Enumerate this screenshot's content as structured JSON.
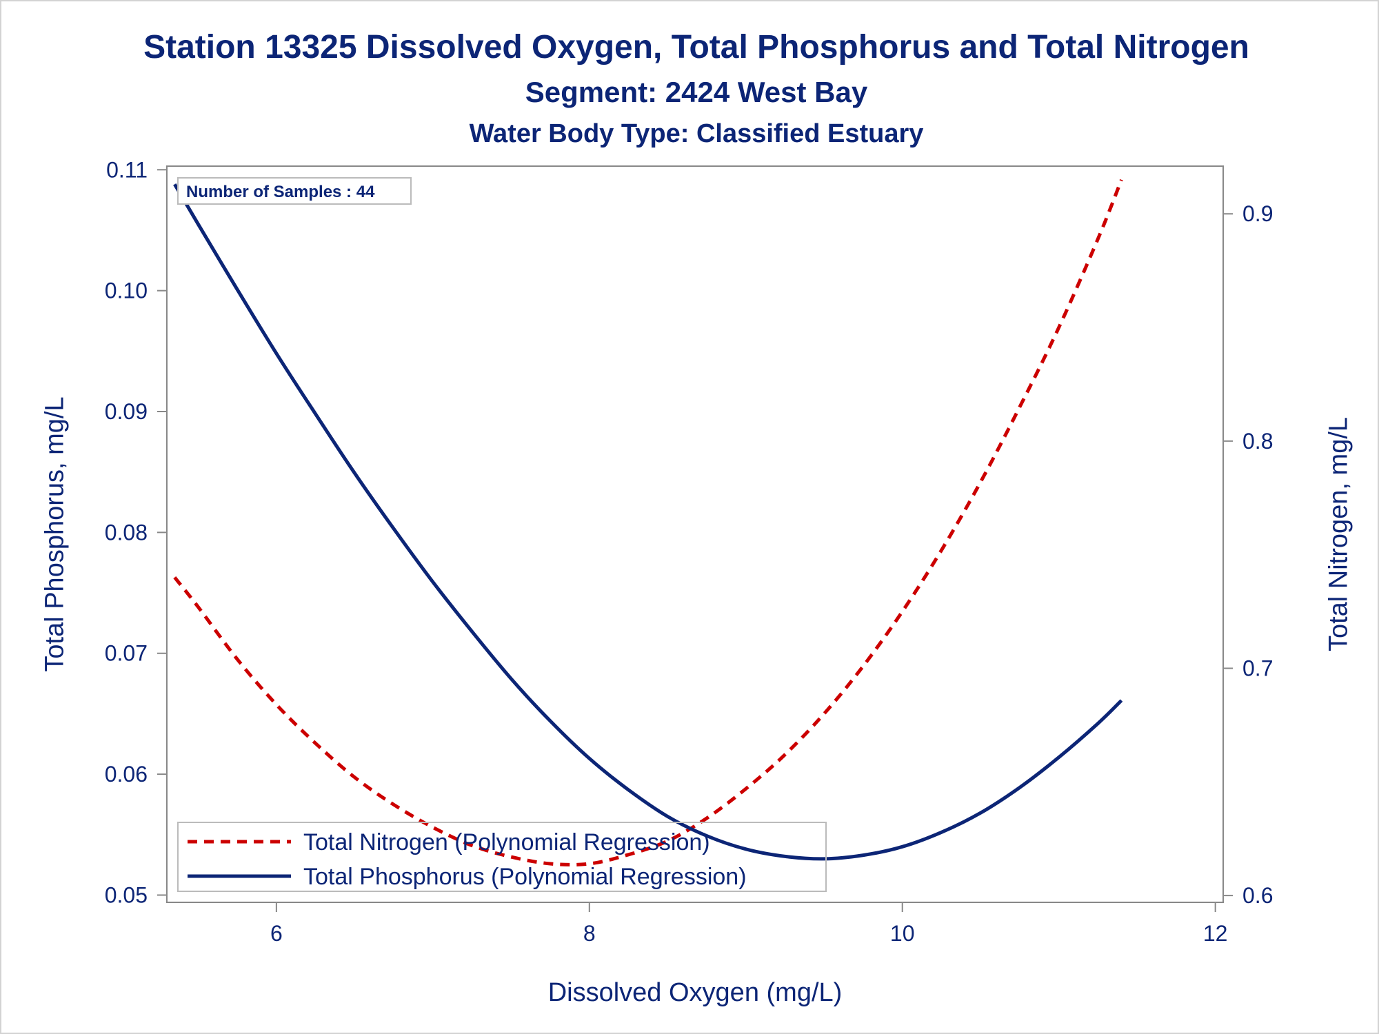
{
  "chart_data": {
    "type": "line",
    "title": "Station 13325  Dissolved Oxygen, Total Phosphorus and Total Nitrogen",
    "subtitle": "Segment: 2424  West Bay",
    "subtitle2": "Water Body Type: Classified Estuary",
    "xlabel": "Dissolved Oxygen (mg/L)",
    "ylabel": "Total Phosphorus, mg/L",
    "y2label": "Total Nitrogen, mg/L",
    "xlim": [
      5.3,
      12.05
    ],
    "ylim": [
      0.0494,
      0.1103
    ],
    "y2lim": [
      0.597,
      0.921
    ],
    "x_ticks": [
      6,
      8,
      10,
      12
    ],
    "x_tick_labels": [
      "6",
      "8",
      "10",
      "12"
    ],
    "y_ticks": [
      0.05,
      0.06,
      0.07,
      0.08,
      0.09,
      0.1,
      0.11
    ],
    "y_tick_labels": [
      "0.05",
      "0.06",
      "0.07",
      "0.08",
      "0.09",
      "0.10",
      "0.11"
    ],
    "y2_ticks": [
      0.6,
      0.7,
      0.8,
      0.9
    ],
    "y2_tick_labels": [
      "0.6",
      "0.7",
      "0.8",
      "0.9"
    ],
    "grid": false,
    "annotation": "Number of Samples : 44",
    "legend_position": "bottom-left",
    "series": [
      {
        "name": "Total Nitrogen (Polynomial Regression)",
        "axis": "right",
        "style": "dashed",
        "color": "#cc0000",
        "x": [
          5.35,
          5.5,
          5.75,
          6.0,
          6.25,
          6.5,
          6.75,
          7.0,
          7.25,
          7.5,
          7.75,
          8.0,
          8.25,
          8.5,
          8.75,
          9.0,
          9.25,
          9.5,
          9.75,
          10.0,
          10.25,
          10.5,
          10.75,
          11.0,
          11.25,
          11.4
        ],
        "y": [
          0.74,
          0.727,
          0.704,
          0.684,
          0.667,
          0.652,
          0.64,
          0.63,
          0.622,
          0.617,
          0.614,
          0.614,
          0.618,
          0.624,
          0.634,
          0.647,
          0.662,
          0.68,
          0.701,
          0.725,
          0.752,
          0.782,
          0.815,
          0.85,
          0.889,
          0.915
        ]
      },
      {
        "name": "Total Phosphorus (Polynomial Regression)",
        "axis": "left",
        "style": "solid",
        "color": "#0c2576",
        "x": [
          5.35,
          5.5,
          5.75,
          6.0,
          6.25,
          6.5,
          6.75,
          7.0,
          7.25,
          7.5,
          7.75,
          8.0,
          8.25,
          8.5,
          8.75,
          9.0,
          9.25,
          9.5,
          9.75,
          10.0,
          10.25,
          10.5,
          10.75,
          11.0,
          11.25,
          11.4
        ],
        "y": [
          0.1088,
          0.1055,
          0.1001,
          0.0948,
          0.0898,
          0.0849,
          0.0803,
          0.0759,
          0.0718,
          0.0679,
          0.0644,
          0.0613,
          0.0587,
          0.0565,
          0.0549,
          0.0538,
          0.0532,
          0.053,
          0.0533,
          0.054,
          0.0552,
          0.0568,
          0.0589,
          0.0614,
          0.0642,
          0.0661
        ]
      }
    ],
    "colors": {
      "text": "#0c2576",
      "axis": "#888888"
    }
  }
}
